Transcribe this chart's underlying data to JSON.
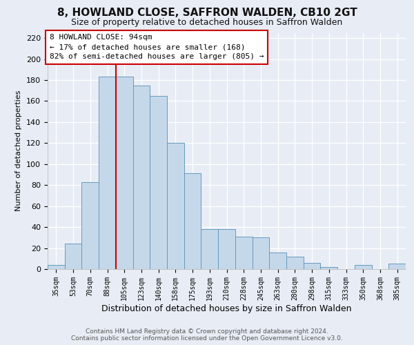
{
  "title1": "8, HOWLAND CLOSE, SAFFRON WALDEN, CB10 2GT",
  "title2": "Size of property relative to detached houses in Saffron Walden",
  "xlabel": "Distribution of detached houses by size in Saffron Walden",
  "ylabel": "Number of detached properties",
  "bar_labels": [
    "35sqm",
    "53sqm",
    "70sqm",
    "88sqm",
    "105sqm",
    "123sqm",
    "140sqm",
    "158sqm",
    "175sqm",
    "193sqm",
    "210sqm",
    "228sqm",
    "245sqm",
    "263sqm",
    "280sqm",
    "298sqm",
    "315sqm",
    "333sqm",
    "350sqm",
    "368sqm",
    "385sqm"
  ],
  "bar_heights": [
    4,
    24,
    83,
    183,
    183,
    175,
    165,
    120,
    91,
    38,
    38,
    31,
    30,
    16,
    12,
    6,
    2,
    0,
    4,
    0,
    5
  ],
  "bar_color": "#c5d8ea",
  "bar_edge_color": "#6699bb",
  "vline_x": 3.5,
  "vline_color": "#cc0000",
  "ylim": [
    0,
    225
  ],
  "yticks": [
    0,
    20,
    40,
    60,
    80,
    100,
    120,
    140,
    160,
    180,
    200,
    220
  ],
  "annotation_title": "8 HOWLAND CLOSE: 94sqm",
  "annotation_line1": "← 17% of detached houses are smaller (168)",
  "annotation_line2": "82% of semi-detached houses are larger (805) →",
  "annotation_box_color": "#ffffff",
  "annotation_border_color": "#cc0000",
  "bg_color": "#e8edf5",
  "plot_bg_color": "#e8edf5",
  "grid_color": "#ffffff",
  "footer1": "Contains HM Land Registry data © Crown copyright and database right 2024.",
  "footer2": "Contains public sector information licensed under the Open Government Licence v3.0."
}
